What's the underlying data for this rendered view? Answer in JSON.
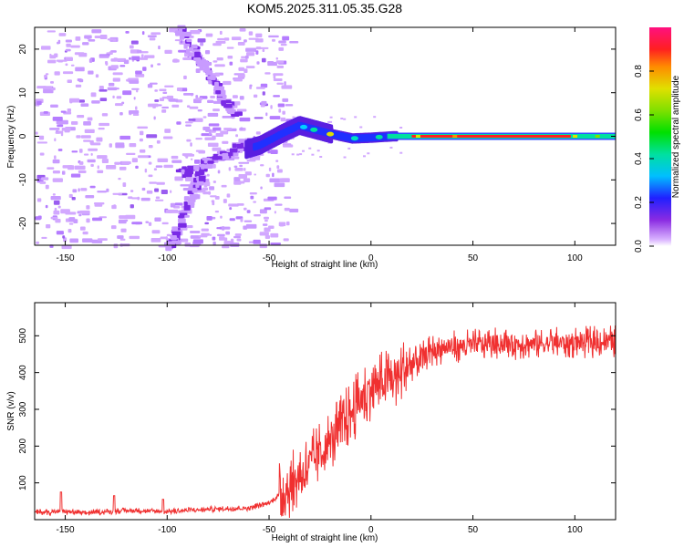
{
  "title": "KOM5.2025.311.05.35.G28",
  "chart_data": [
    {
      "type": "heatmap",
      "panel": "top",
      "xlabel": "Height of straight line (km)",
      "ylabel": "Frequency (Hz)",
      "xlim": [
        -165,
        120
      ],
      "ylim": [
        -25,
        25
      ],
      "xticks": [
        -150,
        -100,
        -50,
        0,
        50,
        100
      ],
      "yticks": [
        -20,
        -10,
        0,
        10,
        20
      ],
      "colorbar": {
        "label": "Normalized spectral amplitude",
        "range": [
          0,
          1
        ],
        "ticks": [
          0.0,
          0.2,
          0.4,
          0.6,
          0.8
        ],
        "colormap": "rainbow (purple-blue-cyan-green-yellow-orange-red-magenta)"
      },
      "ridge": {
        "description": "dominant frequency trace",
        "points": [
          {
            "x": -62,
            "y": -3.0
          },
          {
            "x": -55,
            "y": -2.0
          },
          {
            "x": -45,
            "y": 0.5
          },
          {
            "x": -36,
            "y": 2.5
          },
          {
            "x": -28,
            "y": 1.5
          },
          {
            "x": -20,
            "y": 0.5
          },
          {
            "x": -10,
            "y": -0.5
          },
          {
            "x": 0,
            "y": -0.3
          },
          {
            "x": 10,
            "y": 0.0
          },
          {
            "x": 30,
            "y": 0.0
          },
          {
            "x": 120,
            "y": 0.0
          }
        ]
      }
    },
    {
      "type": "line",
      "panel": "bottom",
      "xlabel": "Height of straight line (km)",
      "ylabel": "SNR (v/v)",
      "xlim": [
        -165,
        120
      ],
      "ylim": [
        0,
        590
      ],
      "xticks": [
        -150,
        -100,
        -50,
        0,
        50,
        100
      ],
      "yticks": [
        100,
        200,
        300,
        400,
        500
      ],
      "series": [
        {
          "name": "SNR",
          "color": "#f03030",
          "x": [
            -165,
            -150,
            -140,
            -120,
            -100,
            -80,
            -60,
            -50,
            -40,
            -30,
            -20,
            -10,
            0,
            10,
            20,
            30,
            40,
            50,
            60,
            80,
            100,
            120
          ],
          "values": [
            20,
            22,
            18,
            25,
            22,
            28,
            32,
            45,
            90,
            150,
            210,
            290,
            360,
            380,
            420,
            460,
            470,
            475,
            480,
            478,
            482,
            485
          ]
        }
      ],
      "spikes": [
        {
          "x": -152,
          "y": 75
        },
        {
          "x": -126,
          "y": 65
        },
        {
          "x": -102,
          "y": 55
        }
      ]
    }
  ]
}
